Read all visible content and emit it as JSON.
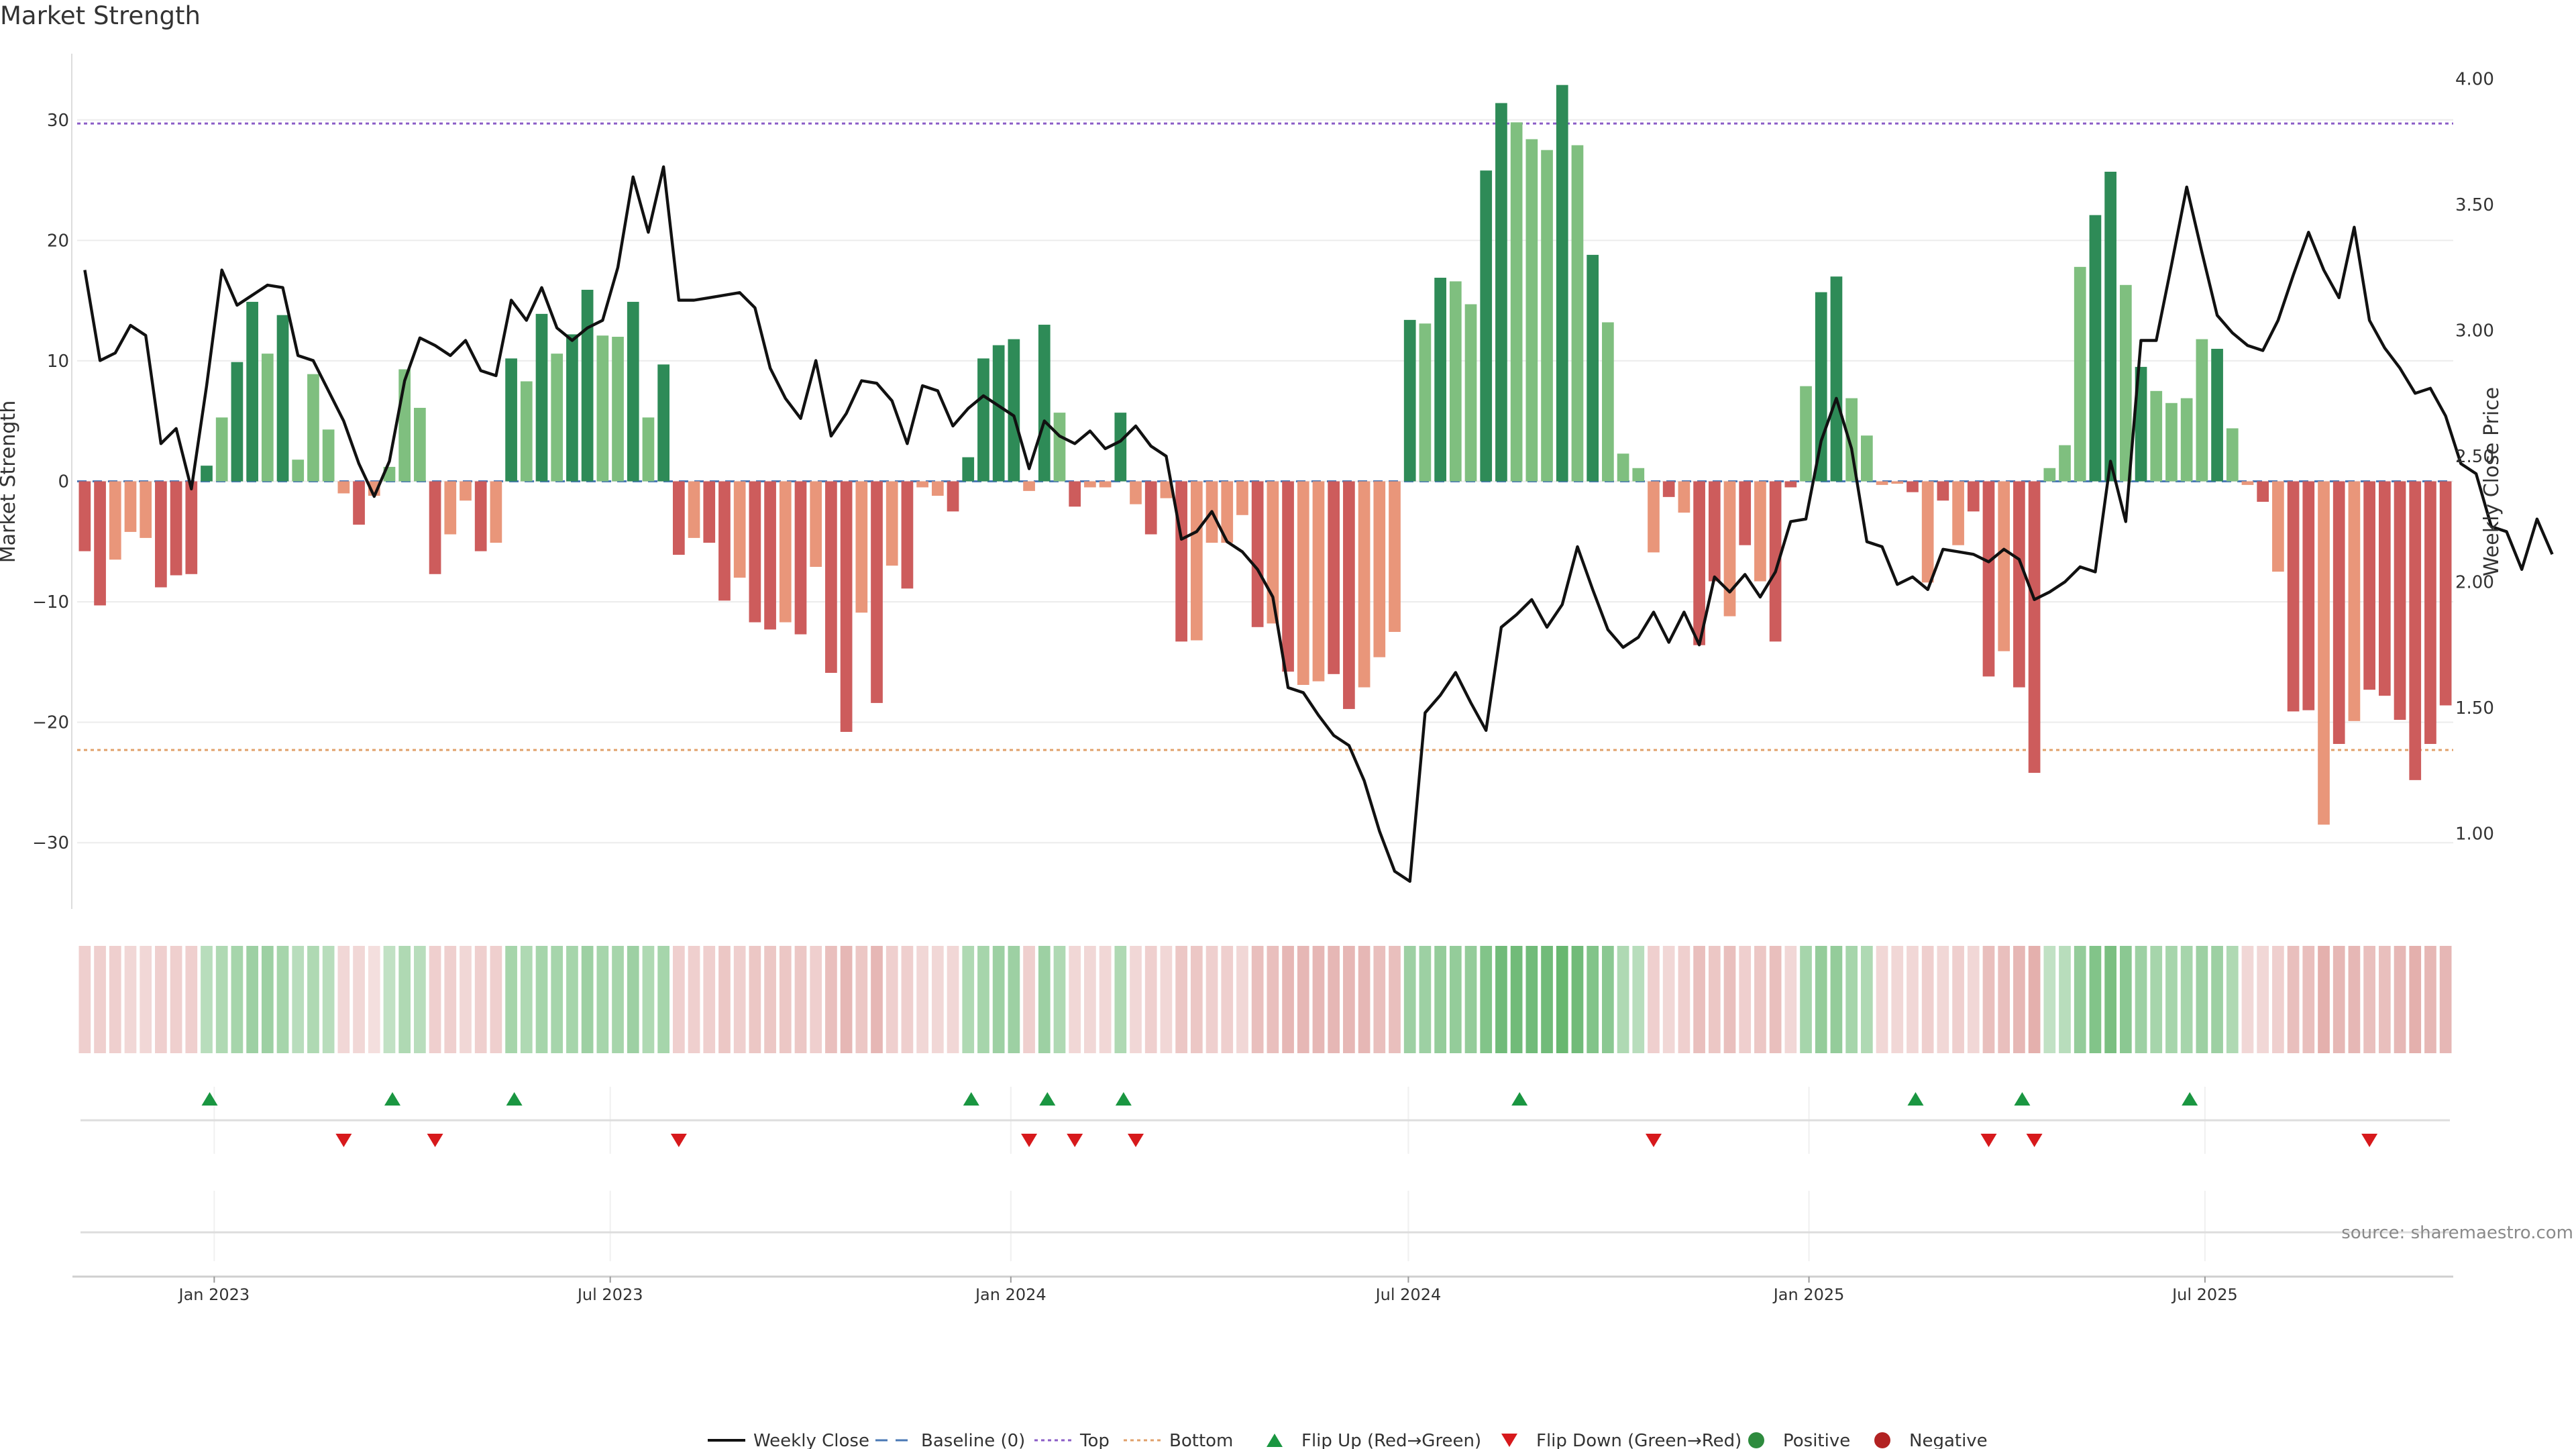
{
  "page": {
    "title": "Market Strength",
    "source": "source: sharemaestro.com"
  },
  "chart_data": {
    "type": "bar",
    "title": "Market Strength",
    "ylabel": "Market Strength",
    "y2label": "Weekly Close Price",
    "ylim": [
      -35.5,
      35.5
    ],
    "y2lim": [
      0.7,
      4.1
    ],
    "yticks": [
      -30,
      -20,
      -10,
      0,
      10,
      20,
      30
    ],
    "yticklabels": [
      "−30",
      "−20",
      "−10",
      "0",
      "10",
      "20",
      "30"
    ],
    "y2ticks": [
      1.0,
      1.5,
      2.0,
      2.5,
      3.0,
      3.5,
      4.0
    ],
    "y2ticklabels": [
      "1.00",
      "1.50",
      "2.00",
      "2.50",
      "3.00",
      "3.50",
      "4.00"
    ],
    "xticks": [
      {
        "label": "Jan 2023",
        "index": 8.5
      },
      {
        "label": "Jul 2023",
        "index": 34.5
      },
      {
        "label": "Jan 2024",
        "index": 60.8
      },
      {
        "label": "Jul 2024",
        "index": 86.9
      },
      {
        "label": "Jan 2025",
        "index": 113.2
      },
      {
        "label": "Jul 2025",
        "index": 139.2
      }
    ],
    "top_line": 29.7,
    "bottom_line": -22.3,
    "baseline": 0,
    "strength": [
      -5.8,
      -10.3,
      -6.5,
      -4.2,
      -4.7,
      -8.8,
      -7.8,
      -7.7,
      1.3,
      5.3,
      9.9,
      14.9,
      10.6,
      13.8,
      1.8,
      8.9,
      4.3,
      -1,
      -3.6,
      -1.2,
      1.2,
      9.3,
      6.1,
      -7.7,
      -4.4,
      -1.6,
      -5.8,
      -5.1,
      10.2,
      8.3,
      13.9,
      10.6,
      12.2,
      15.9,
      12.1,
      12,
      14.9,
      5.3,
      9.7,
      -6.1,
      -4.7,
      -5.1,
      -9.9,
      -8,
      -11.7,
      -12.3,
      -11.7,
      -12.7,
      -7.1,
      -15.9,
      -20.8,
      -10.9,
      -18.4,
      -7,
      -8.9,
      -0.5,
      -1.2,
      -2.5,
      2,
      10.2,
      11.3,
      11.8,
      -0.8,
      13,
      5.7,
      -2.1,
      -0.5,
      -0.5,
      5.7,
      -1.9,
      -4.4,
      -1.4,
      -13.3,
      -13.2,
      -5.1,
      -5.1,
      -2.8,
      -12.1,
      -11.8,
      -15.8,
      -16.9,
      -16.6,
      -16,
      -18.9,
      -17.1,
      -14.6,
      -12.5,
      13.4,
      13.1,
      16.9,
      16.6,
      14.7,
      25.8,
      31.4,
      29.8,
      28.4,
      27.5,
      32.9,
      27.9,
      18.8,
      13.2,
      2.3,
      1.1,
      -5.9,
      -1.3,
      -2.6,
      -13.6,
      -8.3,
      -11.2,
      -5.3,
      -8.3,
      -13.3,
      -0.5,
      7.9,
      15.7,
      17,
      6.9,
      3.8,
      -0.3,
      -0.2,
      -0.9,
      -8.4,
      -1.6,
      -5.3,
      -2.5,
      -16.2,
      -14.1,
      -17.1,
      -24.2,
      1.1,
      3,
      17.8,
      22.1,
      25.7,
      16.3,
      9.5,
      7.5,
      6.5,
      6.9,
      11.8,
      11,
      4.4,
      -0.3,
      -1.7,
      -7.5,
      -19.1,
      -19,
      -28.5,
      -21.8,
      -19.9,
      -17.3,
      -17.8,
      -19.8,
      -24.8,
      -21.8,
      -18.6
    ],
    "weekly_close": [
      3.24,
      2.88,
      2.91,
      3.02,
      2.98,
      2.55,
      2.61,
      2.37,
      2.78,
      3.24,
      3.1,
      3.14,
      3.18,
      3.17,
      2.9,
      2.88,
      2.76,
      2.64,
      2.47,
      2.34,
      2.48,
      2.8,
      2.97,
      2.94,
      2.9,
      2.96,
      2.84,
      2.82,
      3.12,
      3.04,
      3.17,
      3.01,
      2.96,
      3.01,
      3.04,
      3.25,
      3.61,
      3.39,
      3.65,
      3.12,
      3.12,
      3.13,
      3.14,
      3.15,
      3.09,
      2.85,
      2.73,
      2.65,
      2.88,
      2.58,
      2.67,
      2.8,
      2.79,
      2.72,
      2.55,
      2.78,
      2.76,
      2.62,
      2.69,
      2.74,
      2.7,
      2.66,
      2.45,
      2.64,
      2.58,
      2.55,
      2.6,
      2.53,
      2.56,
      2.62,
      2.54,
      2.5,
      2.17,
      2.2,
      2.28,
      2.16,
      2.12,
      2.05,
      1.94,
      1.58,
      1.56,
      1.47,
      1.39,
      1.35,
      1.21,
      1.01,
      0.85,
      0.81,
      1.48,
      1.55,
      1.64,
      1.52,
      1.41,
      1.82,
      1.87,
      1.93,
      1.82,
      1.91,
      2.14,
      1.97,
      1.81,
      1.74,
      1.78,
      1.88,
      1.76,
      1.88,
      1.75,
      2.02,
      1.96,
      2.03,
      1.94,
      2.04,
      2.24,
      2.25,
      2.56,
      2.73,
      2.53,
      2.16,
      2.14,
      1.99,
      2.02,
      1.97,
      2.13,
      2.12,
      2.11,
      2.08,
      2.13,
      2.09,
      1.93,
      1.96,
      2.0,
      2.06,
      2.04,
      2.48,
      2.24,
      2.96,
      2.96,
      3.26,
      3.57,
      3.31,
      3.06,
      2.99,
      2.94,
      2.92,
      3.04,
      3.22,
      3.39,
      3.24,
      3.13,
      3.41,
      3.04,
      2.93,
      2.85,
      2.75,
      2.77,
      2.66,
      2.47,
      2.43,
      2.22,
      2.2,
      2.05,
      2.25,
      2.11
    ],
    "shades": [
      2,
      2,
      1,
      1,
      1,
      2,
      2,
      2,
      2,
      1,
      2,
      2,
      1,
      2,
      1,
      1,
      0,
      1,
      2,
      1,
      0,
      1,
      0,
      2,
      1,
      1,
      2,
      1,
      2,
      1,
      2,
      1,
      2,
      2,
      1,
      1,
      2,
      1,
      2,
      2,
      1,
      2,
      2,
      1,
      2,
      2,
      1,
      2,
      1,
      2,
      2,
      1,
      2,
      1,
      2,
      1,
      1,
      2,
      2,
      2,
      2,
      2,
      1,
      2,
      1,
      2,
      1,
      1,
      2,
      1,
      2,
      1,
      2,
      1,
      1,
      1,
      1,
      2,
      1,
      2,
      1,
      1,
      2,
      2,
      1,
      1,
      1,
      2,
      1,
      2,
      1,
      1,
      2,
      2,
      1,
      1,
      1,
      2,
      1,
      2,
      1,
      1,
      1,
      1,
      2,
      1,
      2,
      2,
      1,
      2,
      1,
      2,
      2,
      1,
      2,
      2,
      1,
      1,
      1,
      1,
      2,
      1,
      2,
      1,
      2,
      2,
      1,
      2,
      2,
      1,
      1,
      1,
      2,
      2,
      1,
      2,
      1,
      1,
      1,
      1,
      2,
      1,
      1,
      2,
      1,
      2,
      2,
      1,
      2,
      1,
      2,
      2,
      2,
      2,
      2,
      2,
      2,
      1
    ],
    "heat_levels": [
      0.3,
      0.3,
      0.3,
      0.25,
      0.25,
      0.3,
      0.3,
      0.3,
      0.4,
      0.45,
      0.5,
      0.55,
      0.55,
      0.5,
      0.4,
      0.45,
      0.4,
      0.25,
      0.25,
      0.2,
      0.35,
      0.45,
      0.4,
      0.3,
      0.3,
      0.25,
      0.3,
      0.3,
      0.5,
      0.45,
      0.5,
      0.5,
      0.5,
      0.55,
      0.5,
      0.5,
      0.55,
      0.45,
      0.5,
      0.3,
      0.3,
      0.3,
      0.35,
      0.3,
      0.35,
      0.35,
      0.35,
      0.35,
      0.3,
      0.4,
      0.45,
      0.35,
      0.45,
      0.3,
      0.3,
      0.25,
      0.25,
      0.25,
      0.45,
      0.5,
      0.55,
      0.55,
      0.3,
      0.55,
      0.45,
      0.25,
      0.25,
      0.25,
      0.45,
      0.25,
      0.3,
      0.25,
      0.35,
      0.35,
      0.3,
      0.3,
      0.25,
      0.4,
      0.4,
      0.45,
      0.45,
      0.45,
      0.45,
      0.45,
      0.45,
      0.4,
      0.4,
      0.55,
      0.55,
      0.6,
      0.6,
      0.6,
      0.7,
      0.8,
      0.8,
      0.8,
      0.8,
      0.85,
      0.8,
      0.7,
      0.65,
      0.45,
      0.4,
      0.3,
      0.25,
      0.3,
      0.4,
      0.35,
      0.4,
      0.3,
      0.35,
      0.4,
      0.25,
      0.5,
      0.6,
      0.6,
      0.5,
      0.45,
      0.25,
      0.25,
      0.25,
      0.3,
      0.25,
      0.3,
      0.25,
      0.4,
      0.4,
      0.45,
      0.5,
      0.35,
      0.4,
      0.6,
      0.7,
      0.75,
      0.65,
      0.55,
      0.5,
      0.5,
      0.5,
      0.55,
      0.55,
      0.45,
      0.25,
      0.25,
      0.3,
      0.4,
      0.4,
      0.5,
      0.45,
      0.45,
      0.4,
      0.4,
      0.45,
      0.5,
      0.45,
      0.45
    ],
    "flip_up": [
      8.2,
      20.2,
      28.2,
      58.2,
      63.2,
      68.2,
      94.2,
      120.2,
      127.2,
      138.2
    ],
    "flip_down": [
      17,
      23,
      39,
      62,
      65,
      69,
      103,
      125,
      128,
      150
    ],
    "legend": [
      {
        "label": "Weekly Close",
        "kind": "solid",
        "color": "#111111"
      },
      {
        "label": "Baseline (0)",
        "kind": "dashed",
        "color": "#4a78b5"
      },
      {
        "label": "Top",
        "kind": "dotted",
        "color": "#8b5cc7"
      },
      {
        "label": "Bottom",
        "kind": "dotted",
        "color": "#e0a06a"
      },
      {
        "label": "Flip Up (Red→Green)",
        "kind": "tri-up",
        "color": "#1a9641"
      },
      {
        "label": "Flip Down (Green→Red)",
        "kind": "tri-down",
        "color": "#d7191c"
      },
      {
        "label": "Positive",
        "kind": "dot",
        "color": "#2e8b3e"
      },
      {
        "label": "Negative",
        "kind": "dot",
        "color": "#b22222"
      }
    ],
    "colors": {
      "pos_dark": "#2e8b57",
      "pos_light": "#7fbf7f",
      "neg_dark": "#cd5c5c",
      "neg_light": "#e9967a",
      "top": "#8b5cc7",
      "bottom": "#e0a06a",
      "baseline": "#4a78b5",
      "price": "#111111",
      "flip_up": "#1a9641",
      "flip_down": "#d7191c",
      "heat_pos": "#4daa57",
      "heat_neg": "#c8605a"
    }
  }
}
